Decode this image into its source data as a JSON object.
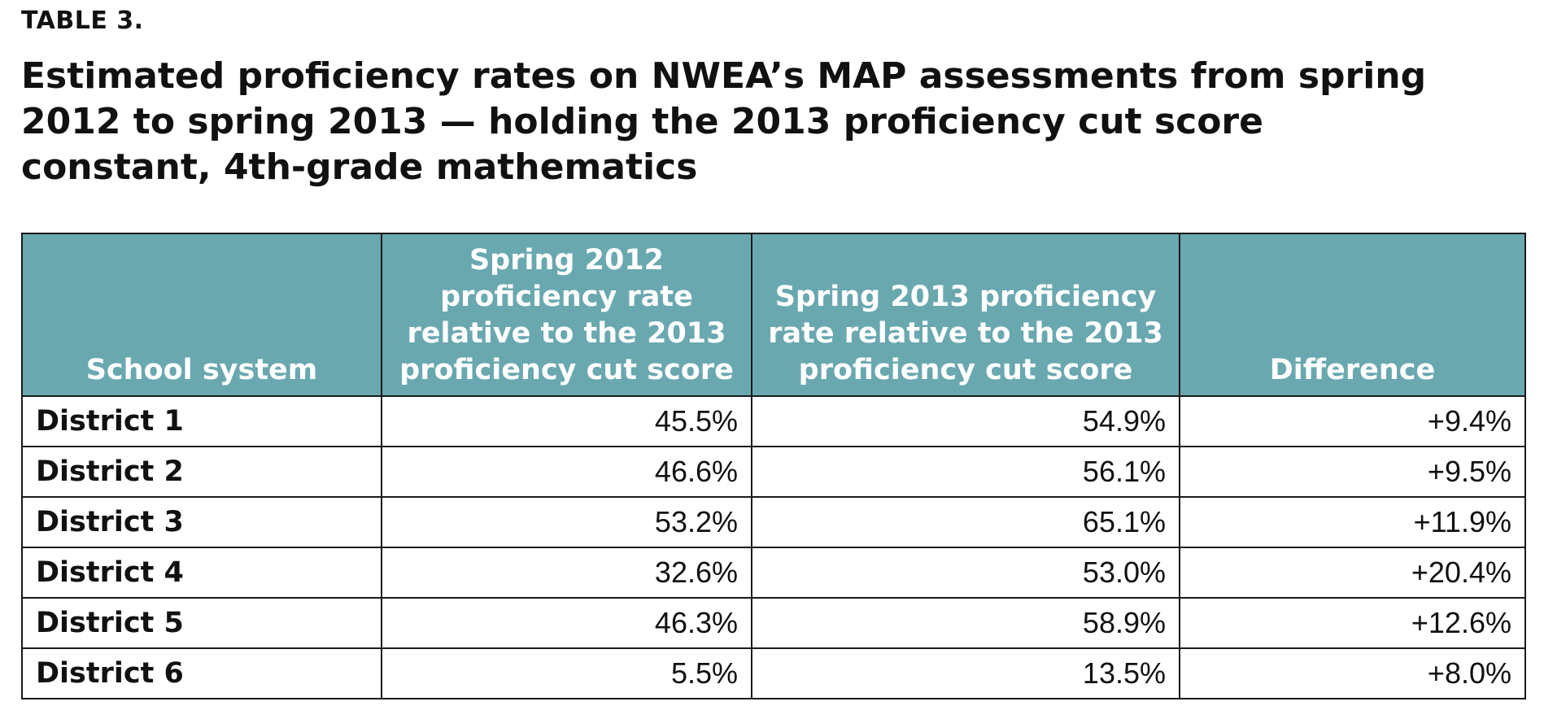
{
  "label": "TABLE 3.",
  "title": "Estimated proficiency rates on NWEA’s MAP assessments from spring 2012 to spring 2013 — holding the 2013 proficiency cut score constant, 4th-grade mathematics",
  "colors": {
    "header_bg": "#6aa8b0",
    "header_text": "#ffffff",
    "border": "#1a1a1a"
  },
  "table": {
    "headers": [
      "School system",
      "Spring 2012 proficiency rate relative to the 2013 proficiency cut score",
      "Spring 2013 proficiency rate relative to the 2013 proficiency cut score",
      "Difference"
    ],
    "rows": [
      [
        "District 1",
        "45.5%",
        "54.9%",
        "+9.4%"
      ],
      [
        "District 2",
        "46.6%",
        "56.1%",
        "+9.5%"
      ],
      [
        "District 3",
        "53.2%",
        "65.1%",
        "+11.9%"
      ],
      [
        "District 4",
        "32.6%",
        "53.0%",
        "+20.4%"
      ],
      [
        "District 5",
        "46.3%",
        "58.9%",
        "+12.6%"
      ],
      [
        "District 6",
        "5.5%",
        "13.5%",
        "+8.0%"
      ]
    ]
  }
}
